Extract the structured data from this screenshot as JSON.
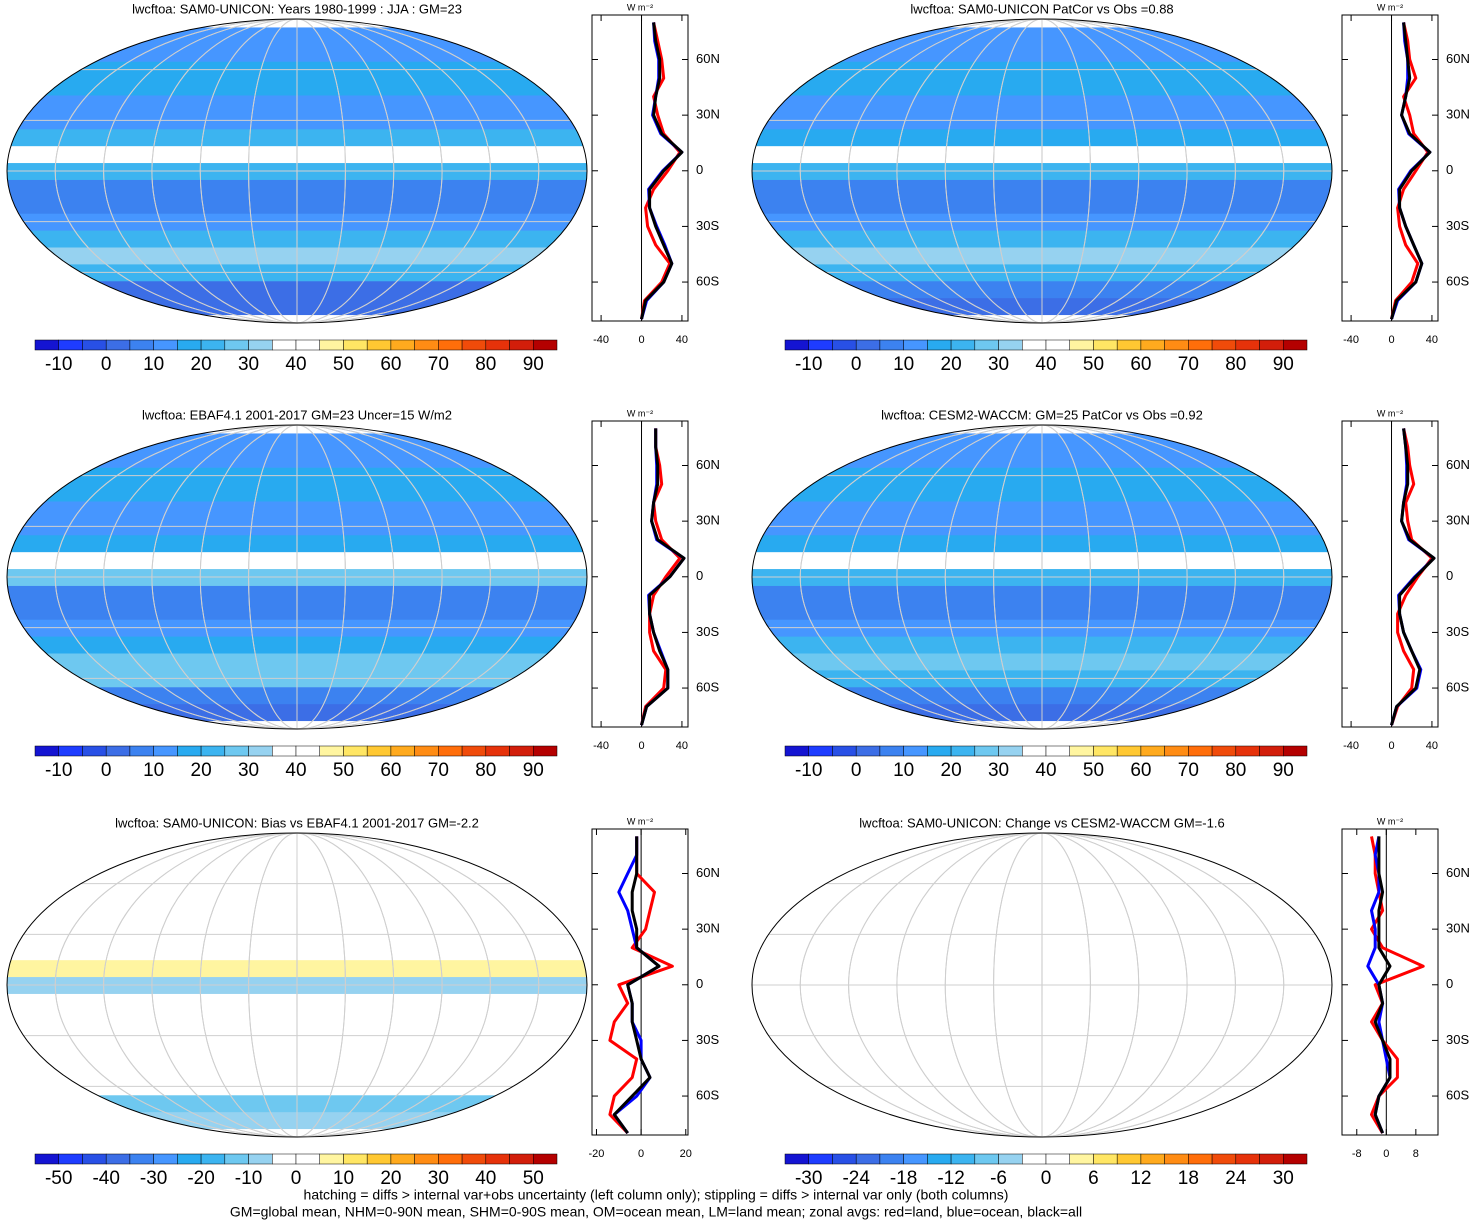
{
  "colormap": [
    "#1414d2",
    "#1e3cff",
    "#2850e6",
    "#3c6ee6",
    "#3c82f0",
    "#4696ff",
    "#28aaf0",
    "#3cb4f0",
    "#6ec8f0",
    "#96d2f0",
    "#ffffff",
    "#ffffff",
    "#fff5a0",
    "#ffe664",
    "#ffc832",
    "#ffaa1e",
    "#ff8c14",
    "#ff6e0a",
    "#f04b0a",
    "#e6320a",
    "#d21e0a",
    "#b40000"
  ],
  "panels": [
    {
      "title": "lwcftoa: SAM0-UNICON: Years 1980-1999 : JJA : GM=23",
      "colorbar_labels": [
        -10,
        0,
        10,
        20,
        30,
        40,
        50,
        60,
        70,
        80,
        90
      ],
      "profile": {
        "units": "W m⁻²",
        "xlim": [
          -49,
          46
        ],
        "xticks": [
          -40,
          0,
          40
        ],
        "ylim": [
          -81,
          84
        ],
        "yticks": [
          {
            "value": 60,
            "label": "60N"
          },
          {
            "value": 30,
            "label": "30N"
          },
          0,
          {
            "value": -30,
            "label": "30S"
          },
          {
            "value": -60,
            "label": "60S"
          }
        ],
        "lat": [
          -80,
          -70,
          -60,
          -50,
          -40,
          -30,
          -20,
          -10,
          0,
          10,
          20,
          30,
          40,
          50,
          60,
          70,
          80
        ],
        "series": [
          {
            "color": "#ff0000",
            "values": [
              0,
              3,
              20,
              28,
              14,
              6,
              4,
              12,
              26,
              38,
              22,
              16,
              12,
              22,
              20,
              16,
              12
            ]
          },
          {
            "color": "#0000ff",
            "values": [
              0,
              5,
              22,
              30,
              23,
              15,
              8,
              7,
              21,
              40,
              19,
              11,
              14,
              17,
              17,
              13,
              12
            ]
          },
          {
            "color": "#000000",
            "values": [
              0,
              4,
              22,
              30,
              22,
              14,
              8,
              8,
              22,
              40,
              20,
              12,
              14,
              18,
              18,
              14,
              12
            ]
          }
        ]
      }
    },
    {
      "title": "lwcftoa: SAM0-UNICON PatCor vs Obs =0.88",
      "colorbar_labels": [
        -10,
        0,
        10,
        20,
        30,
        40,
        50,
        60,
        70,
        80,
        90
      ],
      "profile": {
        "units": "W m⁻²",
        "xlim": [
          -49,
          46
        ],
        "xticks": [
          -40,
          0,
          40
        ],
        "ylim": [
          -81,
          84
        ],
        "yticks": [
          {
            "value": 60,
            "label": "60N"
          },
          {
            "value": 30,
            "label": "30N"
          },
          0,
          {
            "value": -30,
            "label": "30S"
          },
          {
            "value": -60,
            "label": "60S"
          }
        ],
        "lat": [
          -80,
          -70,
          -60,
          -50,
          -40,
          -30,
          -20,
          -10,
          0,
          10,
          20,
          30,
          40,
          50,
          60,
          70,
          80
        ],
        "series": [
          {
            "color": "#ff0000",
            "values": [
              0,
              4,
              20,
              26,
              14,
              8,
              6,
              12,
              24,
              36,
              22,
              18,
              12,
              24,
              18,
              16,
              12
            ]
          },
          {
            "color": "#0000ff",
            "values": [
              0,
              6,
              24,
              30,
              22,
              14,
              8,
              7,
              19,
              38,
              17,
              10,
              14,
              16,
              16,
              13,
              12
            ]
          },
          {
            "color": "#000000",
            "values": [
              0,
              5,
              24,
              30,
              22,
              14,
              8,
              8,
              20,
              38,
              18,
              10,
              14,
              18,
              16,
              14,
              12
            ]
          }
        ]
      }
    },
    {
      "title": "lwcftoa: EBAF4.1 2001-2017 GM=23 Uncer=15 W/m2",
      "colorbar_labels": [
        -10,
        0,
        10,
        20,
        30,
        40,
        50,
        60,
        70,
        80,
        90
      ],
      "profile": {
        "units": "W m⁻²",
        "xlim": [
          -49,
          46
        ],
        "xticks": [
          -40,
          0,
          40
        ],
        "ylim": [
          -81,
          84
        ],
        "yticks": [
          {
            "value": 60,
            "label": "60N"
          },
          {
            "value": 30,
            "label": "30N"
          },
          0,
          {
            "value": -30,
            "label": "30S"
          },
          {
            "value": -60,
            "label": "60S"
          }
        ],
        "lat": [
          -80,
          -70,
          -60,
          -50,
          -40,
          -30,
          -20,
          -10,
          0,
          10,
          20,
          30,
          40,
          50,
          60,
          70,
          80
        ],
        "series": [
          {
            "color": "#ff0000",
            "values": [
              0,
              4,
              22,
              24,
              12,
              8,
              8,
              12,
              24,
              38,
              20,
              14,
              12,
              20,
              18,
              14,
              14
            ]
          },
          {
            "color": "#0000ff",
            "values": [
              0,
              5,
              26,
              26,
              19,
              12,
              8,
              7,
              28,
              42,
              15,
              10,
              12,
              15,
              15,
              14,
              14
            ]
          },
          {
            "color": "#000000",
            "values": [
              0,
              5,
              26,
              26,
              18,
              12,
              8,
              8,
              28,
              42,
              16,
              10,
              12,
              16,
              16,
              14,
              14
            ]
          }
        ]
      }
    },
    {
      "title": "lwcftoa: CESM2-WACCM: GM=25 PatCor vs Obs =0.92",
      "colorbar_labels": [
        -10,
        0,
        10,
        20,
        30,
        40,
        50,
        60,
        70,
        80,
        90
      ],
      "profile": {
        "units": "W m⁻²",
        "xlim": [
          -49,
          46
        ],
        "xticks": [
          -40,
          0,
          40
        ],
        "ylim": [
          -81,
          84
        ],
        "yticks": [
          {
            "value": 60,
            "label": "60N"
          },
          {
            "value": 30,
            "label": "30N"
          },
          0,
          {
            "value": -30,
            "label": "30S"
          },
          {
            "value": -60,
            "label": "60S"
          }
        ],
        "lat": [
          -80,
          -70,
          -60,
          -50,
          -40,
          -30,
          -20,
          -10,
          0,
          10,
          20,
          30,
          40,
          50,
          60,
          70,
          80
        ],
        "series": [
          {
            "color": "#ff0000",
            "values": [
              0,
              6,
              20,
              22,
              12,
              6,
              6,
              14,
              26,
              40,
              20,
              16,
              14,
              22,
              18,
              16,
              12
            ]
          },
          {
            "color": "#0000ff",
            "values": [
              0,
              5,
              25,
              29,
              20,
              12,
              8,
              7,
              23,
              42,
              17,
              10,
              12,
              15,
              15,
              14,
              12
            ]
          },
          {
            "color": "#000000",
            "values": [
              0,
              5,
              24,
              28,
              20,
              12,
              8,
              8,
              24,
              42,
              18,
              10,
              12,
              16,
              16,
              14,
              12
            ]
          }
        ]
      }
    },
    {
      "title": "lwcftoa: SAM0-UNICON: Bias vs EBAF4.1 2001-2017 GM=-2.2",
      "colorbar_labels": [
        -50,
        -40,
        -30,
        -20,
        -10,
        0,
        10,
        20,
        30,
        40,
        50
      ],
      "profile": {
        "units": "W m⁻²",
        "xlim": [
          -22,
          21
        ],
        "xticks": [
          -20,
          0,
          20
        ],
        "ylim": [
          -81,
          84
        ],
        "yticks": [
          {
            "value": 60,
            "label": "60N"
          },
          {
            "value": 30,
            "label": "30N"
          },
          0,
          {
            "value": -30,
            "label": "30S"
          },
          {
            "value": -60,
            "label": "60S"
          }
        ],
        "lat": [
          -80,
          -70,
          -60,
          -50,
          -40,
          -30,
          -20,
          -10,
          0,
          10,
          20,
          30,
          40,
          50,
          60,
          70,
          80
        ],
        "series": [
          {
            "color": "#ff0000",
            "values": [
              -6,
              -14,
              -12,
              -4,
              -2,
              -14,
              -12,
              -6,
              -10,
              14,
              -4,
              2,
              4,
              6,
              -2,
              -2,
              -2
            ]
          },
          {
            "color": "#0000ff",
            "values": [
              -6,
              -12,
              -2,
              4,
              0,
              0,
              -4,
              -4,
              -6,
              8,
              -2,
              -4,
              -6,
              -10,
              -6,
              -2,
              -2
            ]
          },
          {
            "color": "#000000",
            "values": [
              -6,
              -12,
              -4,
              4,
              0,
              -2,
              -4,
              -4,
              -6,
              8,
              -2,
              -2,
              -4,
              -4,
              -2,
              -2,
              -2
            ]
          }
        ]
      }
    },
    {
      "title": "lwcftoa: SAM0-UNICON: Change vs CESM2-WACCM GM=-1.6",
      "colorbar_labels": [
        -30,
        -24,
        -18,
        -12,
        -6,
        0,
        6,
        12,
        18,
        24,
        30
      ],
      "profile": {
        "units": "W m⁻²",
        "xlim": [
          -12,
          14
        ],
        "xticks": [
          -8,
          0,
          8
        ],
        "ylim": [
          -81,
          84
        ],
        "yticks": [
          {
            "value": 60,
            "label": "60N"
          },
          {
            "value": 30,
            "label": "30N"
          },
          0,
          {
            "value": -30,
            "label": "30S"
          },
          {
            "value": -60,
            "label": "60S"
          }
        ],
        "lat": [
          -80,
          -70,
          -60,
          -50,
          -40,
          -30,
          -20,
          -10,
          0,
          10,
          20,
          30,
          40,
          50,
          60,
          70,
          80
        ],
        "series": [
          {
            "color": "#ff0000",
            "values": [
              -1,
              -4,
              -2,
              3,
              3,
              -1,
              -4,
              -1,
              -3,
              10,
              -1,
              -4,
              -1,
              -2,
              -3,
              -3,
              -4
            ]
          },
          {
            "color": "#0000ff",
            "values": [
              -1,
              -3,
              -2,
              1,
              0,
              -1,
              -2,
              -1,
              -2,
              -5,
              -3,
              -3,
              -4,
              -2,
              -2,
              -3,
              -2
            ]
          },
          {
            "color": "#000000",
            "values": [
              -1,
              -3,
              -2,
              1,
              1,
              -1,
              -3,
              -1,
              -2,
              1,
              -2,
              -2,
              -2,
              -1,
              -2,
              -2,
              -2
            ]
          }
        ]
      }
    }
  ],
  "footer": [
    "hatching = diffs > internal var+obs uncertainty (left column only); stippling = diffs > internal var only (both columns)",
    "GM=global mean, NHM=0-90N mean, SHM=0-90S mean, OM=ocean mean, LM=land mean; zonal avgs: red=land, blue=ocean, black=all"
  ]
}
